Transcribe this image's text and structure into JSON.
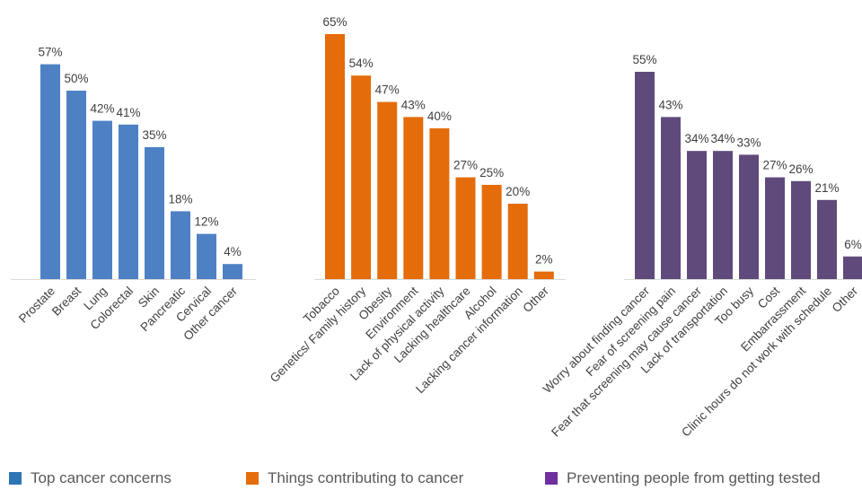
{
  "chart_data": [
    {
      "type": "bar",
      "name": "Top cancer concerns",
      "color": "#4e81c4",
      "categories": [
        "Prostate",
        "Breast",
        "Lung",
        "Colorectal",
        "Skin",
        "Pancreatic",
        "Cervical",
        "Other cancer"
      ],
      "values": [
        57,
        50,
        42,
        41,
        35,
        18,
        12,
        4
      ],
      "value_labels": [
        "57%",
        "50%",
        "42%",
        "41%",
        "35%",
        "18%",
        "12%",
        "4%"
      ],
      "ylim": [
        0,
        70
      ]
    },
    {
      "type": "bar",
      "name": "Things contributing to cancer",
      "color": "#e46c0a",
      "categories": [
        "Tobacco",
        "Genetics/ Family history",
        "Obesity",
        "Environment",
        "Lack of physical activity",
        "Lacking healthcare",
        "Alcohol",
        "Lacking cancer information",
        "Other"
      ],
      "values": [
        65,
        54,
        47,
        43,
        40,
        27,
        25,
        20,
        2
      ],
      "value_labels": [
        "65%",
        "54%",
        "47%",
        "43%",
        "40%",
        "27%",
        "25%",
        "20%",
        "2%"
      ],
      "ylim": [
        0,
        70
      ]
    },
    {
      "type": "bar",
      "name": "Preventing people from getting tested",
      "color": "#604a7b",
      "categories": [
        "Worry about finding cancer",
        "Fear of screening pain",
        "Fear that screening may cause cancer",
        "Lack of transportation",
        "Too busy",
        "Cost",
        "Embarrassment",
        "Clinic hours do not work with schedule",
        "Other"
      ],
      "values": [
        55,
        43,
        34,
        34,
        33,
        27,
        26,
        21,
        6
      ],
      "value_labels": [
        "55%",
        "43%",
        "34%",
        "34%",
        "33%",
        "27%",
        "26%",
        "21%",
        "6%"
      ],
      "ylim": [
        0,
        70
      ]
    }
  ],
  "legend": {
    "placement": "bottom",
    "items": [
      {
        "label": "Top cancer concerns",
        "color": "#2e75b6"
      },
      {
        "label": "Things contributing to cancer",
        "color": "#e46c0a"
      },
      {
        "label": "Preventing people from getting tested",
        "color": "#7030a0"
      }
    ]
  }
}
